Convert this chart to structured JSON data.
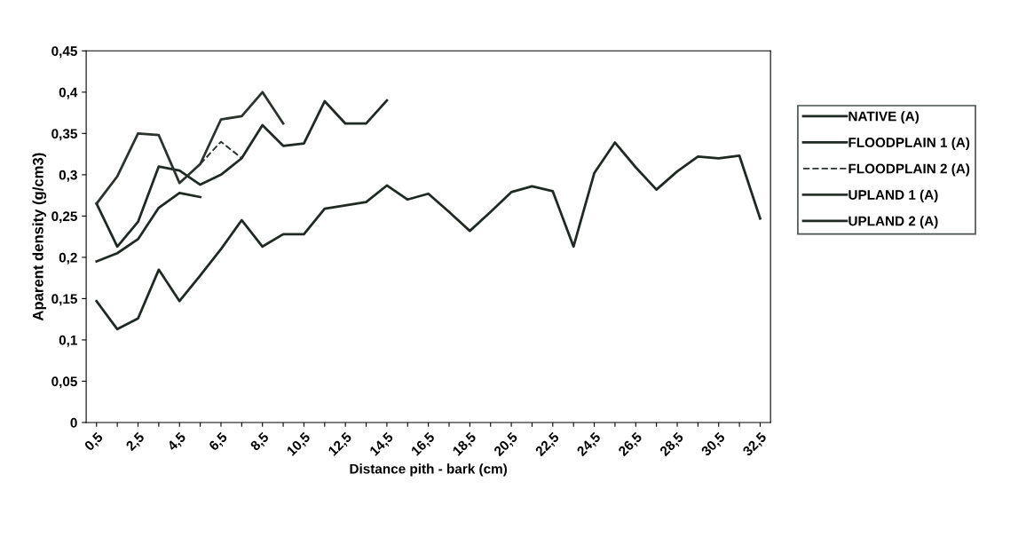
{
  "chart_data": {
    "type": "line",
    "xlabel": "Distance pith - bark (cm)",
    "ylabel": "Aparent density (g/cm3)",
    "categories": [
      "0,5",
      null,
      "2,5",
      null,
      "4,5",
      null,
      "6,5",
      null,
      "8,5",
      null,
      "10,5",
      null,
      "12,5",
      null,
      "14,5",
      null,
      "16,5",
      null,
      "18,5",
      null,
      "20,5",
      null,
      "22,5",
      null,
      "24,5",
      null,
      "26,5",
      null,
      "28,5",
      null,
      "30,5",
      null,
      "32,5"
    ],
    "series": [
      {
        "name": "NATIVE (A)",
        "color": "#1e2a22",
        "values": [
          0.147,
          0.113,
          0.126,
          0.185,
          0.147,
          0.178,
          0.21,
          0.245,
          0.213,
          0.228,
          0.228,
          0.259,
          0.263,
          0.267,
          0.287,
          0.27,
          0.277,
          0.255,
          0.232,
          0.255,
          0.279,
          0.286,
          0.28,
          0.213,
          0.302,
          0.339,
          0.309,
          0.282,
          0.304,
          0.322,
          0.32,
          0.323,
          0.247
        ]
      },
      {
        "name": "FLOODPLAIN 1 (A)",
        "color": "#1e2a22",
        "values": [
          0.265,
          0.213,
          0.243,
          0.31,
          0.305,
          0.288,
          0.3,
          0.32,
          0.36,
          0.335,
          0.338,
          0.389,
          0.362,
          0.362,
          0.39,
          null,
          null,
          null,
          null,
          null,
          null,
          null,
          null,
          null,
          null,
          null,
          null,
          null,
          null,
          null,
          null,
          null,
          null
        ]
      },
      {
        "name": "FLOODPLAIN 2 (A)",
        "color": "#2a332c",
        "line_style": "dashed",
        "values": [
          null,
          null,
          null,
          null,
          null,
          0.313,
          0.34,
          0.32,
          null,
          null,
          null,
          null,
          null,
          null,
          null,
          null,
          null,
          null,
          null,
          null,
          null,
          null,
          null,
          null,
          null,
          null,
          null,
          null,
          null,
          null,
          null,
          null,
          null
        ]
      },
      {
        "name": "UPLAND 1 (A)",
        "color": "#2a332c",
        "values": [
          0.265,
          0.298,
          0.35,
          0.348,
          0.29,
          0.313,
          0.367,
          0.371,
          0.4,
          0.362,
          null,
          null,
          null,
          null,
          null,
          null,
          null,
          null,
          null,
          null,
          null,
          null,
          null,
          null,
          null,
          null,
          null,
          null,
          null,
          null,
          null,
          null,
          null
        ]
      },
      {
        "name": "UPLAND 2 (A)",
        "color": "#1e2a22",
        "values": [
          0.195,
          0.205,
          0.222,
          0.26,
          0.278,
          0.273,
          null,
          null,
          null,
          null,
          null,
          null,
          null,
          null,
          null,
          null,
          null,
          null,
          null,
          null,
          null,
          null,
          null,
          null,
          null,
          null,
          null,
          null,
          null,
          null,
          null,
          null,
          null
        ]
      }
    ],
    "ylim": [
      0,
      0.45
    ],
    "yticks": [
      {
        "value": 0,
        "label": "0"
      },
      {
        "value": 0.05,
        "label": "0,05"
      },
      {
        "value": 0.1,
        "label": "0,1"
      },
      {
        "value": 0.15,
        "label": "0,15"
      },
      {
        "value": 0.2,
        "label": "0,2"
      },
      {
        "value": 0.25,
        "label": "0,25"
      },
      {
        "value": 0.3,
        "label": "0,3"
      },
      {
        "value": 0.35,
        "label": "0,35"
      },
      {
        "value": 0.4,
        "label": "0,4"
      },
      {
        "value": 0.45,
        "label": "0,45"
      }
    ],
    "grid": false,
    "legend": "right",
    "marker": "none"
  }
}
